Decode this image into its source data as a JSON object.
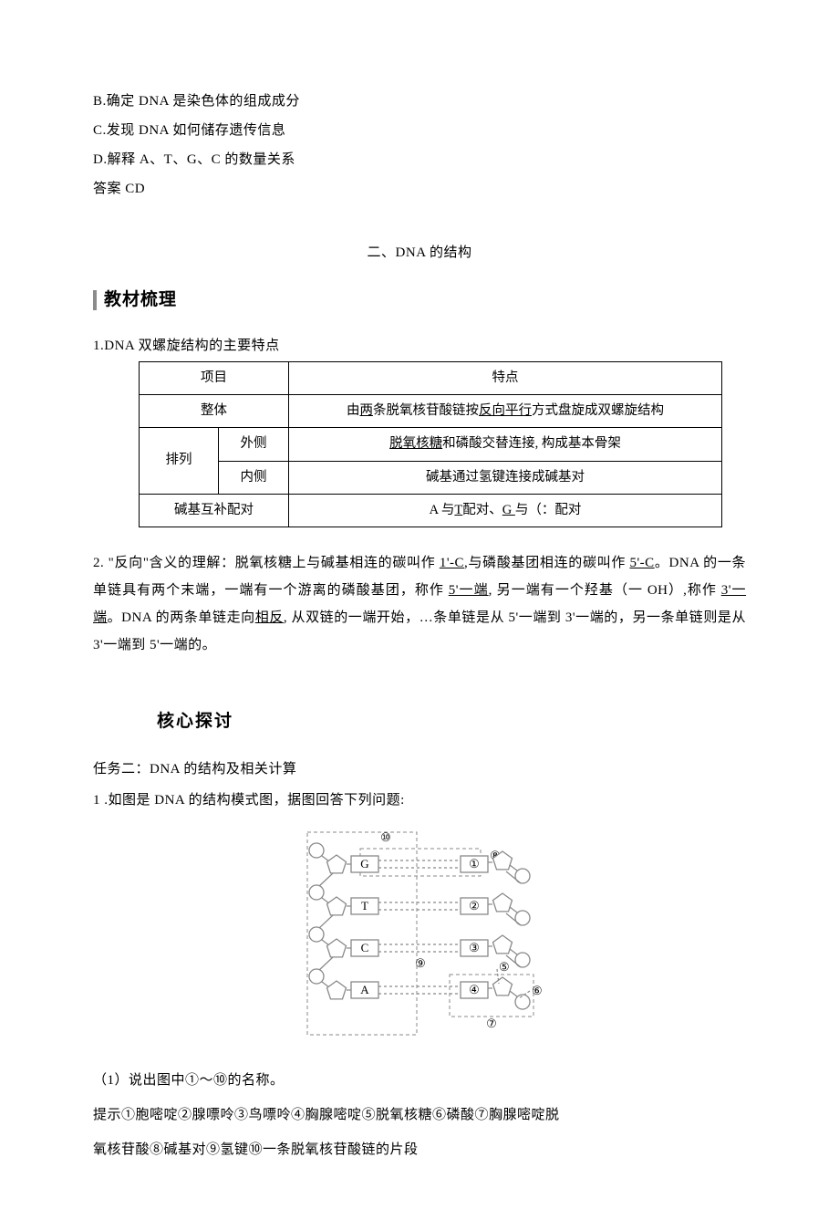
{
  "options": {
    "b": "B.确定 DNA 是染色体的组成成分",
    "c": "C.发现 DNA 如何储存遗传信息",
    "d": "D.解释 A、T、G、C 的数量关系"
  },
  "answer_label": "答案 CD",
  "section2_title": "二、DNA 的结构",
  "heading_comb": "教材梳理",
  "sub1_title": "1.DNA 双螺旋结构的主要特点",
  "table": {
    "hdr_item": "项目",
    "hdr_feat": "特点",
    "whole": "整体",
    "whole_feat_pre": "由",
    "whole_feat_u": "两",
    "whole_feat_mid": "条脱氧核苷酸链按",
    "whole_feat_u2": "反向平行",
    "whole_feat_post": "方式盘旋成双螺旋结构",
    "arrange": "排列",
    "outer": "外侧",
    "outer_feat_u": "脱氧核糖",
    "outer_feat_post": "和磷酸交替连接, 构成基本骨架",
    "inner": "内侧",
    "inner_feat": "碱基通过氢键连接成碱基对",
    "pair": "碱基互补配对",
    "pair_feat_1": "A 与",
    "pair_feat_u1": "T",
    "pair_feat_2": "配对、",
    "pair_feat_u2": "G ",
    "pair_feat_3": "与（：配对"
  },
  "para2_pre": "2. \"反向\"含义的理解：脱氧核糖上与碱基相连的碳叫作 ",
  "para2_u1": "1'-C",
  "para2_seg1": ",与磷酸基团相连的碳叫作 ",
  "para2_u2": "5'-C",
  "para2_seg1b": "。DNA 的一条单链具有两个末端，一端有一个游离的磷酸基团，称作 ",
  "para2_u3": "5'一端",
  "para2_seg2": ", 另一端有一个羟基（一 OH）,称作 ",
  "para2_u4": "3'一端",
  "para2_seg3": "。DNA 的两条单链走向",
  "para2_u5": "相反",
  "para2_seg4": ", 从双链的一端开始，…条单链是从 5'一端到 3'一端的，另一条单链则是从 3'一端到 5'一端的。",
  "core_heading": "核心探讨",
  "task2": "任务二：DNA 的结构及相关计算",
  "q1": "1 .如图是 DNA 的结构模式图，据图回答下列问题:",
  "q1_1": "（1）说出图中①～⑩的名称。",
  "hint1": "提示①胞嘧啶②腺嘌呤③鸟嘌呤④胸腺嘧啶⑤脱氧核糖⑥磷酸⑦胸腺嘧啶脱",
  "hint2": "氧核苷酸⑧碱基对⑨氢键⑩一条脱氧核苷酸链的片段",
  "diagram": {
    "bases_left": [
      "G",
      "T",
      "C",
      "A"
    ],
    "circled": [
      "①",
      "②",
      "③",
      "④",
      "⑤",
      "⑥",
      "⑦",
      "⑧",
      "⑨",
      "⑩"
    ],
    "stroke": "#888888",
    "fill": "#ffffff",
    "font": "13"
  }
}
